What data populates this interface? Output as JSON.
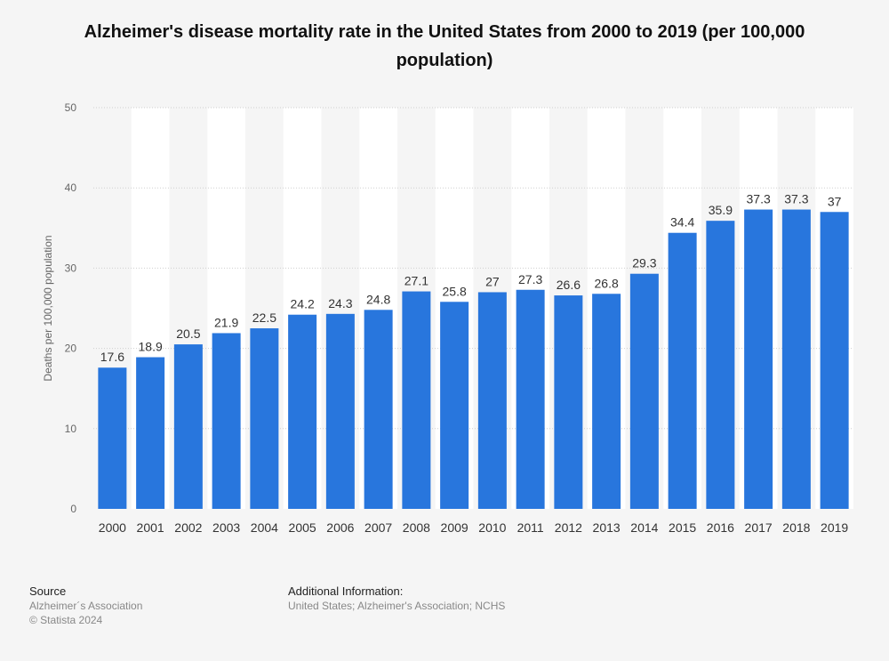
{
  "chart_data": {
    "type": "bar",
    "title": "Alzheimer's disease mortality rate in the United States from 2000 to 2019 (per 100,000 population)",
    "xlabel": "",
    "ylabel": "Deaths per 100,000 population",
    "ylim": [
      0,
      50
    ],
    "yticks": [
      0,
      10,
      20,
      30,
      40,
      50
    ],
    "categories": [
      "2000",
      "2001",
      "2002",
      "2003",
      "2004",
      "2005",
      "2006",
      "2007",
      "2008",
      "2009",
      "2010",
      "2011",
      "2012",
      "2013",
      "2014",
      "2015",
      "2016",
      "2017",
      "2018",
      "2019"
    ],
    "values": [
      17.6,
      18.9,
      20.5,
      21.9,
      22.5,
      24.2,
      24.3,
      24.8,
      27.1,
      25.8,
      27,
      27.3,
      26.6,
      26.8,
      29.3,
      34.4,
      35.9,
      37.3,
      37.3,
      37
    ],
    "value_labels": [
      "17.6",
      "18.9",
      "20.5",
      "21.9",
      "22.5",
      "24.2",
      "24.3",
      "24.8",
      "27.1",
      "25.8",
      "27",
      "27.3",
      "26.6",
      "26.8",
      "29.3",
      "34.4",
      "35.9",
      "37.3",
      "37.3",
      "37"
    ],
    "grid": true,
    "legend": "none",
    "colors": {
      "bar": "#2876dd",
      "band": "#ffffff",
      "background": "#f5f5f5",
      "grid": "#cfcfcf"
    }
  },
  "footer": {
    "source_heading": "Source",
    "source_line1": "Alzheimer´s Association",
    "source_line2": "© Statista 2024",
    "info_heading": "Additional Information:",
    "info_line": "United States; Alzheimer's Association; NCHS"
  }
}
